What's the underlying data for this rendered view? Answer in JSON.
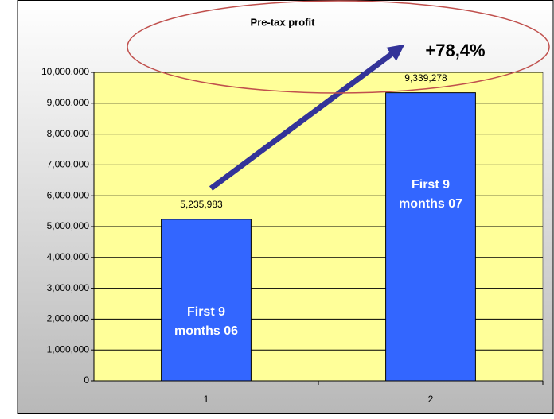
{
  "chart_data": {
    "type": "bar",
    "title": "Pre-tax profit",
    "annotation": "+78,4%",
    "categories": [
      "1",
      "2"
    ],
    "values": [
      5235983,
      9339278
    ],
    "value_labels": [
      "5,235,983",
      "9,339,278"
    ],
    "bar_labels": [
      [
        "First 9",
        "months 06"
      ],
      [
        "First 9",
        "months 07"
      ]
    ],
    "color": "#3366ff",
    "plot_color": "#ffff99",
    "arrow_color": "#333399",
    "ellipse_color": "#c0504d",
    "ylim": [
      0,
      10000000
    ],
    "yticks": [
      0,
      {
        "value": 1000000,
        "label": "1,000,000"
      },
      {
        "value": 2000000,
        "label": "2,000,000"
      },
      {
        "value": 3000000,
        "label": "3,000,000"
      },
      {
        "value": 4000000,
        "label": "4,000,000"
      },
      {
        "value": 5000000,
        "label": "5,000,000"
      },
      {
        "value": 6000000,
        "label": "6,000,000"
      },
      {
        "value": 7000000,
        "label": "7,000,000"
      },
      {
        "value": 8000000,
        "label": "8,000,000"
      },
      {
        "value": 9000000,
        "label": "9,000,000"
      },
      {
        "value": 10000000,
        "label": "10,000,000"
      }
    ]
  }
}
